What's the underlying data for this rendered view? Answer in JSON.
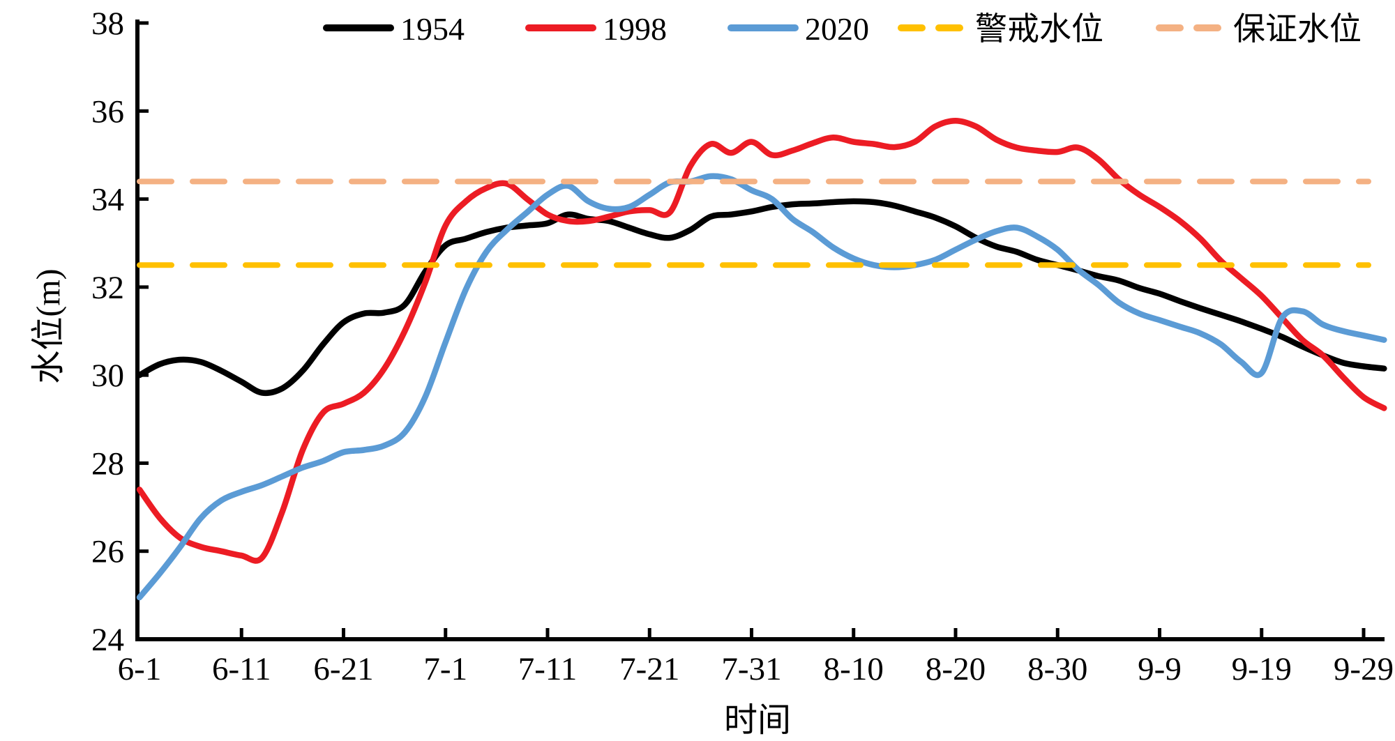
{
  "chart_data": {
    "type": "line",
    "title": "",
    "xlabel": "时间",
    "ylabel": "水位(m)",
    "ylim": [
      24,
      38
    ],
    "ytick_step": 2,
    "ytick_labels": [
      "24",
      "26",
      "28",
      "30",
      "32",
      "34",
      "36",
      "38"
    ],
    "x_unit": "days since 6-1",
    "xtick_days": [
      0,
      10,
      20,
      30,
      40,
      50,
      60,
      70,
      80,
      90,
      100,
      110,
      120
    ],
    "xtick_labels": [
      "6-1",
      "6-11",
      "6-21",
      "7-1",
      "7-11",
      "7-21",
      "7-31",
      "8-10",
      "8-20",
      "8-30",
      "9-9",
      "9-19",
      "9-29"
    ],
    "grid": false,
    "legend_position": "top",
    "days": [
      0,
      2,
      4,
      6,
      8,
      10,
      12,
      14,
      16,
      18,
      20,
      22,
      24,
      26,
      28,
      30,
      32,
      34,
      36,
      38,
      40,
      42,
      44,
      46,
      48,
      50,
      52,
      54,
      56,
      58,
      60,
      62,
      64,
      66,
      68,
      70,
      72,
      74,
      76,
      78,
      80,
      82,
      84,
      86,
      88,
      90,
      92,
      94,
      96,
      98,
      100,
      102,
      104,
      106,
      108,
      110,
      112,
      114,
      116,
      118,
      120,
      122
    ],
    "series": [
      {
        "name": "1954",
        "color": "#000000",
        "style": "solid",
        "values": [
          30.0,
          30.25,
          30.35,
          30.3,
          30.1,
          29.85,
          29.6,
          29.7,
          30.1,
          30.7,
          31.2,
          31.4,
          31.42,
          31.6,
          32.35,
          32.95,
          33.1,
          33.25,
          33.35,
          33.4,
          33.45,
          33.65,
          33.55,
          33.5,
          33.35,
          33.2,
          33.12,
          33.3,
          33.6,
          33.65,
          33.72,
          33.82,
          33.88,
          33.9,
          33.93,
          33.95,
          33.93,
          33.85,
          33.72,
          33.58,
          33.38,
          33.12,
          32.92,
          32.8,
          32.62,
          32.5,
          32.38,
          32.25,
          32.15,
          31.98,
          31.85,
          31.68,
          31.52,
          31.37,
          31.22,
          31.05,
          30.87,
          30.65,
          30.45,
          30.28,
          30.2,
          30.15
        ]
      },
      {
        "name": "1998",
        "color": "#EC1C24",
        "style": "solid",
        "values": [
          27.4,
          26.75,
          26.3,
          26.1,
          26.0,
          25.9,
          25.85,
          26.9,
          28.3,
          29.15,
          29.35,
          29.6,
          30.15,
          31.0,
          32.1,
          33.4,
          33.95,
          34.25,
          34.35,
          34.0,
          33.65,
          33.5,
          33.5,
          33.6,
          33.72,
          33.75,
          33.7,
          34.75,
          35.25,
          35.05,
          35.3,
          35.0,
          35.1,
          35.27,
          35.4,
          35.3,
          35.25,
          35.18,
          35.3,
          35.65,
          35.78,
          35.65,
          35.35,
          35.17,
          35.1,
          35.07,
          35.17,
          34.9,
          34.45,
          34.1,
          33.82,
          33.5,
          33.1,
          32.6,
          32.2,
          31.8,
          31.3,
          30.8,
          30.45,
          29.95,
          29.5,
          29.25
        ]
      },
      {
        "name": "2020",
        "color": "#5B9BD5",
        "style": "solid",
        "values": [
          24.95,
          25.5,
          26.1,
          26.75,
          27.15,
          27.35,
          27.5,
          27.7,
          27.9,
          28.05,
          28.25,
          28.3,
          28.4,
          28.7,
          29.5,
          30.75,
          31.95,
          32.8,
          33.3,
          33.7,
          34.1,
          34.3,
          33.95,
          33.78,
          33.82,
          34.1,
          34.38,
          34.4,
          34.52,
          34.45,
          34.2,
          34.0,
          33.55,
          33.25,
          32.9,
          32.65,
          32.5,
          32.45,
          32.5,
          32.62,
          32.85,
          33.08,
          33.27,
          33.35,
          33.15,
          32.85,
          32.4,
          32.05,
          31.65,
          31.4,
          31.25,
          31.1,
          30.95,
          30.7,
          30.3,
          30.05,
          31.3,
          31.45,
          31.15,
          31.0,
          30.9,
          30.8
        ]
      }
    ],
    "ref_lines": [
      {
        "name": "警戒水位",
        "value": 32.5,
        "color": "#FFC000",
        "style": "dashed"
      },
      {
        "name": "保证水位",
        "value": 34.4,
        "color": "#F4B183",
        "style": "dashed"
      }
    ]
  }
}
